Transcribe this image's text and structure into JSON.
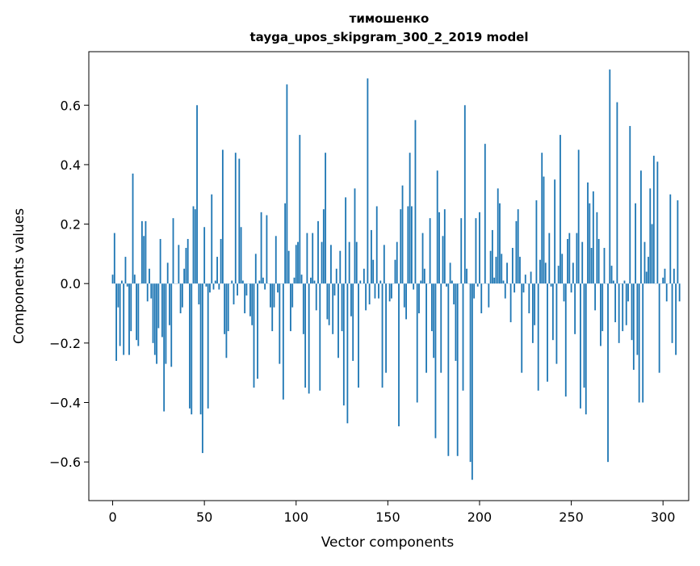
{
  "chart_data": {
    "type": "bar",
    "title_line1": "тимошенко",
    "title_line2": "tayga_upos_skipgram_300_2_2019 model",
    "xlabel": "Vector components",
    "ylabel": "Components values",
    "xlim": [
      -13,
      314
    ],
    "ylim": [
      -0.73,
      0.78
    ],
    "xticks": [
      0,
      50,
      100,
      150,
      200,
      250,
      300
    ],
    "xtick_labels": [
      "0",
      "50",
      "100",
      "150",
      "200",
      "250",
      "300"
    ],
    "yticks": [
      -0.6,
      -0.4,
      -0.2,
      0.0,
      0.2,
      0.4,
      0.6
    ],
    "ytick_labels": [
      "−0.6",
      "−0.4",
      "−0.2",
      "0.0",
      "0.2",
      "0.4",
      "0.6"
    ],
    "grid": false,
    "color": "#1f77b4",
    "values": [
      0.03,
      0.17,
      -0.26,
      -0.08,
      -0.21,
      0.01,
      -0.24,
      0.09,
      -0.01,
      -0.24,
      -0.16,
      0.37,
      0.03,
      -0.19,
      -0.21,
      0.0,
      0.21,
      0.16,
      0.21,
      -0.06,
      0.05,
      -0.05,
      -0.2,
      -0.24,
      -0.27,
      -0.15,
      0.15,
      -0.18,
      -0.43,
      -0.27,
      0.07,
      -0.14,
      -0.28,
      0.22,
      0.0,
      0.0,
      0.13,
      -0.1,
      -0.08,
      0.05,
      0.12,
      0.15,
      -0.42,
      -0.44,
      0.26,
      0.25,
      0.6,
      -0.07,
      -0.44,
      -0.57,
      0.19,
      -0.01,
      -0.42,
      -0.03,
      0.3,
      -0.02,
      0.01,
      0.09,
      -0.02,
      0.15,
      0.45,
      -0.17,
      -0.25,
      -0.16,
      0.0,
      0.01,
      -0.07,
      0.44,
      -0.04,
      0.42,
      0.19,
      0.01,
      -0.1,
      -0.04,
      0.0,
      -0.11,
      -0.14,
      -0.35,
      0.1,
      -0.32,
      0.01,
      0.24,
      0.02,
      -0.02,
      0.23,
      0.0,
      -0.08,
      -0.16,
      -0.08,
      0.16,
      -0.03,
      -0.27,
      0.0,
      -0.39,
      0.27,
      0.67,
      0.11,
      -0.16,
      -0.08,
      0.02,
      0.13,
      0.14,
      0.5,
      0.03,
      -0.17,
      -0.35,
      0.17,
      -0.37,
      0.02,
      0.17,
      0.01,
      -0.09,
      0.21,
      -0.36,
      0.14,
      0.25,
      0.44,
      -0.12,
      -0.14,
      0.13,
      -0.17,
      -0.04,
      0.05,
      -0.25,
      0.11,
      -0.16,
      -0.41,
      0.29,
      -0.47,
      0.14,
      -0.11,
      -0.26,
      0.32,
      0.14,
      -0.35,
      0.01,
      0.0,
      0.05,
      -0.09,
      0.69,
      -0.07,
      0.18,
      0.08,
      -0.05,
      0.26,
      -0.05,
      0.01,
      -0.35,
      0.13,
      -0.3,
      0.0,
      -0.06,
      -0.05,
      0.0,
      0.08,
      0.14,
      -0.48,
      0.25,
      0.33,
      -0.08,
      -0.12,
      0.26,
      0.44,
      0.26,
      -0.02,
      0.55,
      -0.4,
      -0.1,
      0.01,
      0.17,
      0.05,
      -0.3,
      0.0,
      0.22,
      -0.16,
      -0.25,
      -0.52,
      0.38,
      0.24,
      -0.3,
      0.16,
      0.25,
      -0.01,
      -0.58,
      0.07,
      0.01,
      -0.07,
      -0.26,
      -0.58,
      0.0,
      0.22,
      -0.36,
      0.6,
      0.05,
      0.0,
      -0.6,
      -0.66,
      -0.05,
      0.22,
      -0.01,
      0.24,
      -0.1,
      0.0,
      0.47,
      0.0,
      -0.08,
      0.11,
      0.18,
      0.02,
      0.09,
      0.32,
      0.27,
      0.1,
      0.01,
      -0.05,
      0.07,
      0.0,
      -0.13,
      0.12,
      -0.03,
      0.21,
      0.25,
      0.09,
      -0.3,
      -0.03,
      0.03,
      0.0,
      -0.1,
      0.04,
      -0.2,
      -0.14,
      0.28,
      -0.36,
      0.08,
      0.44,
      0.36,
      0.07,
      -0.33,
      0.17,
      -0.01,
      -0.19,
      0.35,
      -0.27,
      0.06,
      0.5,
      0.1,
      -0.06,
      -0.38,
      0.15,
      0.17,
      -0.03,
      0.07,
      -0.17,
      0.17,
      0.45,
      -0.42,
      0.14,
      -0.35,
      -0.44,
      0.34,
      0.27,
      0.12,
      0.31,
      -0.09,
      0.24,
      0.15,
      -0.21,
      -0.16,
      0.12,
      0.0,
      -0.6,
      0.72,
      0.06,
      0.01,
      -0.13,
      0.61,
      -0.2,
      0.0,
      -0.16,
      0.01,
      -0.14,
      -0.06,
      0.53,
      -0.19,
      -0.29,
      0.27,
      -0.24,
      -0.4,
      0.38,
      -0.4,
      0.14,
      0.04,
      0.09,
      0.32,
      0.2,
      0.43,
      0.0,
      0.41,
      -0.3,
      0.0,
      0.02,
      0.05,
      -0.06,
      0.0,
      0.3,
      -0.2,
      0.05,
      -0.24,
      0.28,
      -0.06
    ]
  }
}
